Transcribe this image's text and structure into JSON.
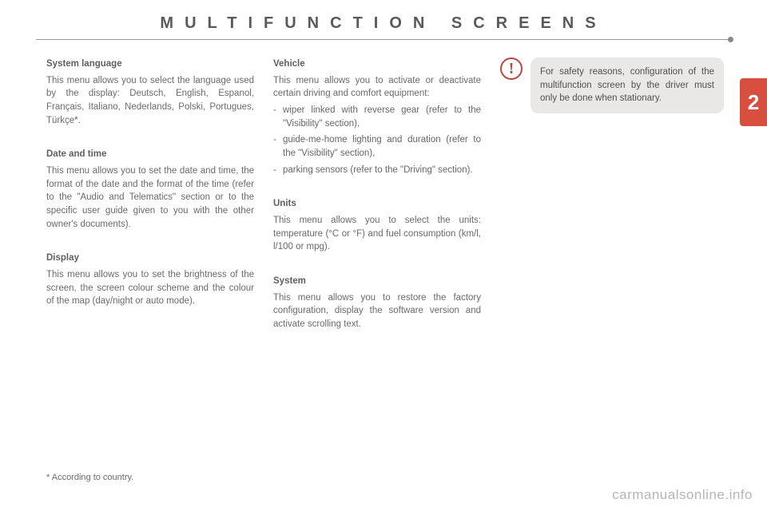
{
  "header": {
    "title": "MULTIFUNCTION SCREENS"
  },
  "sideTab": {
    "number": "2"
  },
  "col1": {
    "systemLanguage": {
      "title": "System language",
      "body": "This menu allows you to select the language used by the display: Deutsch, English, Espanol, Français, Italiano, Nederlands, Polski, Portugues, Türkçe*."
    },
    "dateTime": {
      "title": "Date and time",
      "body": "This menu allows you to set the date and time, the format of the date and the format of the time (refer to the \"Audio and Telematics\" section or to the specific user guide given to you with the other owner's documents)."
    },
    "display": {
      "title": "Display",
      "body": "This menu allows you to set the brightness of the screen, the screen colour scheme and the colour of the map (day/night or auto mode)."
    }
  },
  "col2": {
    "vehicle": {
      "title": "Vehicle",
      "intro": "This menu allows you to activate or deactivate certain driving and comfort equipment:",
      "items": [
        "wiper linked with reverse gear (refer to the \"Visibility\" section),",
        "guide-me-home lighting and duration (refer to the \"Visibility\" section),",
        "parking sensors (refer to the \"Driving\" section)."
      ]
    },
    "units": {
      "title": "Units",
      "body": "This menu allows you to select the units: temperature (°C or °F) and fuel consumption (km/l, l/100 or mpg)."
    },
    "system": {
      "title": "System",
      "body": "This menu allows you to restore the factory configuration, display the software version and activate scrolling text."
    }
  },
  "col3": {
    "warning": {
      "iconGlyph": "!",
      "body": "For safety reasons, configuration of the multifunction screen by the driver must only be done when stationary."
    }
  },
  "footnote": "* According to country.",
  "watermark": "carmanualsonline.info",
  "colors": {
    "accent": "#d94f3f",
    "warnBorder": "#b34a3f",
    "panelBg": "#e9e8e6",
    "textGrey": "#666666",
    "ruleGrey": "#999999"
  }
}
